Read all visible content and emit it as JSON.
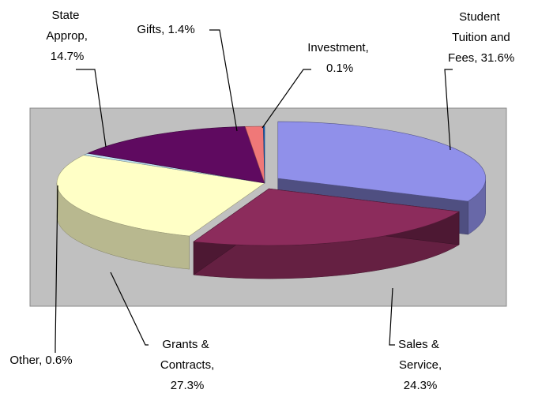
{
  "chart_data": {
    "type": "pie3d",
    "values": [
      31.6,
      24.3,
      27.3,
      0.6,
      14.7,
      1.4,
      0.1
    ],
    "value_labels": [
      "Student Tuition and Fees, 31.6%",
      "Sales & Service, 24.3%",
      "Grants & Contracts, 27.3%",
      "Other, 0.6%",
      "State Approp, 14.7%",
      "Gifts, 1.4%",
      "Investment, 0.1%"
    ],
    "colors": [
      "#9090ea",
      "#8c2c5c",
      "#ffffc6",
      "#bfe3f2",
      "#5f0a60",
      "#f07878",
      "#1464c4"
    ]
  }
}
